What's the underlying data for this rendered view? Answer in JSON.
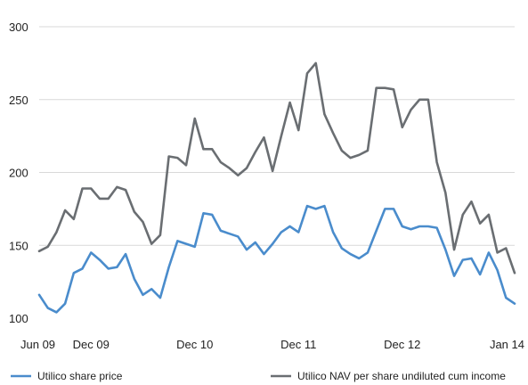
{
  "chart_data": {
    "type": "line",
    "title": "",
    "xlabel": "",
    "ylabel": "",
    "ylim": [
      100,
      300
    ],
    "yticks": [
      "100",
      "150",
      "200",
      "250",
      "300"
    ],
    "xticks": [
      {
        "label": "Jun 09",
        "index": 0
      },
      {
        "label": "Dec 09",
        "index": 6
      },
      {
        "label": "Dec 10",
        "index": 18
      },
      {
        "label": "Dec 11",
        "index": 30
      },
      {
        "label": "Dec 12",
        "index": 42
      },
      {
        "label": "Jan 14",
        "index": 55
      }
    ],
    "grid": true,
    "legend_position": "bottom",
    "series": [
      {
        "name": "Utilico share price",
        "color": "#4a8ccc",
        "values": [
          116,
          107,
          104,
          110,
          131,
          134,
          145,
          140,
          134,
          135,
          144,
          127,
          116,
          120,
          114,
          135,
          153,
          151,
          149,
          172,
          171,
          160,
          158,
          156,
          147,
          152,
          144,
          151,
          159,
          163,
          159,
          177,
          175,
          177,
          159,
          148,
          144,
          141,
          145,
          160,
          175,
          175,
          163,
          161,
          163,
          163,
          162,
          147,
          129,
          140,
          141,
          130,
          145,
          133,
          114,
          110
        ]
      },
      {
        "name": "Utilico NAV per share undiluted cum income",
        "color": "#6a6e72",
        "values": [
          146,
          149,
          159,
          174,
          168,
          189,
          189,
          182,
          182,
          190,
          188,
          173,
          166,
          151,
          157,
          211,
          210,
          205,
          237,
          216,
          216,
          207,
          203,
          198,
          203,
          214,
          224,
          201,
          225,
          248,
          229,
          268,
          275,
          240,
          227,
          215,
          210,
          212,
          215,
          258,
          258,
          257,
          231,
          243,
          250,
          250,
          207,
          186,
          147,
          171,
          180,
          165,
          171,
          145,
          148,
          131
        ]
      }
    ]
  }
}
